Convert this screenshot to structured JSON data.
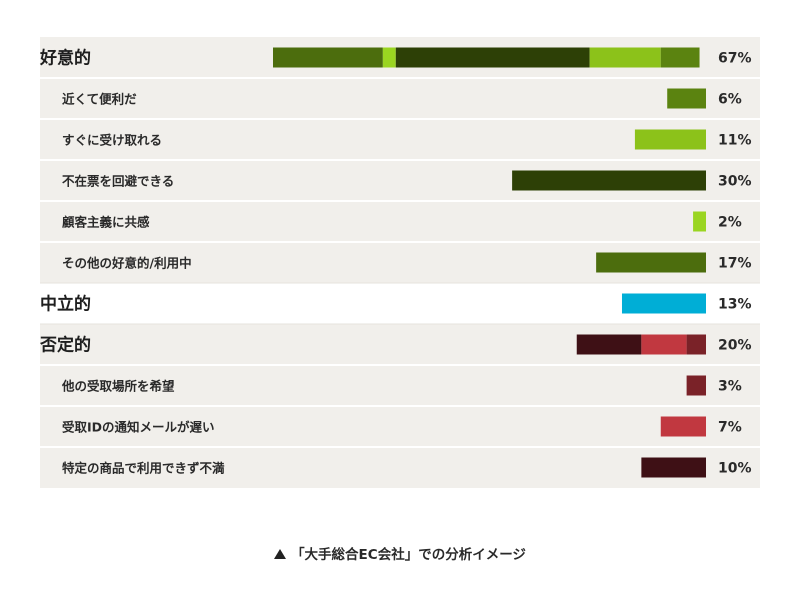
{
  "chart_data": {
    "type": "bar",
    "value_max_percent": 67,
    "colors": {
      "dark_green": "#2d4006",
      "mid_green": "#4c6d0d",
      "olive": "#5b8310",
      "lime": "#8cc21a",
      "bright_lime": "#9ad521",
      "cyan": "#00aed6",
      "dark_red": "#3e1015",
      "red": "#c13840",
      "maroon": "#7a2228"
    },
    "rows": [
      {
        "label": "好意的",
        "value": 67,
        "value_label": "67%",
        "level": "category",
        "color": "mid_green",
        "stack": [
          {
            "of": "その他の好意的/利用中",
            "value": 17,
            "color": "mid_green"
          },
          {
            "of": "顧客主義に共感",
            "value": 2,
            "color": "bright_lime"
          },
          {
            "of": "不在票を回避できる",
            "value": 30,
            "color": "dark_green"
          },
          {
            "of": "すぐに受け取れる",
            "value": 11,
            "color": "lime"
          },
          {
            "of": "近くて便利だ",
            "value": 6,
            "color": "olive"
          }
        ]
      },
      {
        "label": "近くて便利だ",
        "value": 6,
        "value_label": "6%",
        "level": "sub",
        "color": "olive"
      },
      {
        "label": "すぐに受け取れる",
        "value": 11,
        "value_label": "11%",
        "level": "sub",
        "color": "lime"
      },
      {
        "label": "不在票を回避できる",
        "value": 30,
        "value_label": "30%",
        "level": "sub",
        "color": "dark_green"
      },
      {
        "label": "顧客主義に共感",
        "value": 2,
        "value_label": "2%",
        "level": "sub",
        "color": "bright_lime"
      },
      {
        "label": "その他の好意的/利用中",
        "value": 17,
        "value_label": "17%",
        "level": "sub",
        "color": "mid_green"
      },
      {
        "label": "中立的",
        "value": 13,
        "value_label": "13%",
        "level": "category",
        "color": "cyan"
      },
      {
        "label": "否定的",
        "value": 20,
        "value_label": "20%",
        "level": "category",
        "color": "maroon",
        "stack": [
          {
            "of": "特定の商品で利用できず不満",
            "value": 10,
            "color": "dark_red"
          },
          {
            "of": "受取IDの通知メールが遅い",
            "value": 7,
            "color": "red"
          },
          {
            "of": "他の受取場所を希望",
            "value": 3,
            "color": "maroon"
          }
        ]
      },
      {
        "label": "他の受取場所を希望",
        "value": 3,
        "value_label": "3%",
        "level": "sub",
        "color": "maroon"
      },
      {
        "label": "受取IDの通知メールが遅い",
        "value": 7,
        "value_label": "7%",
        "level": "sub",
        "color": "red"
      },
      {
        "label": "特定の商品で利用できず不満",
        "value": 10,
        "value_label": "10%",
        "level": "sub",
        "color": "dark_red"
      }
    ]
  },
  "caption": {
    "text": "「大手総合EC会社」での分析イメージ",
    "icon": "triangle-up-icon"
  }
}
